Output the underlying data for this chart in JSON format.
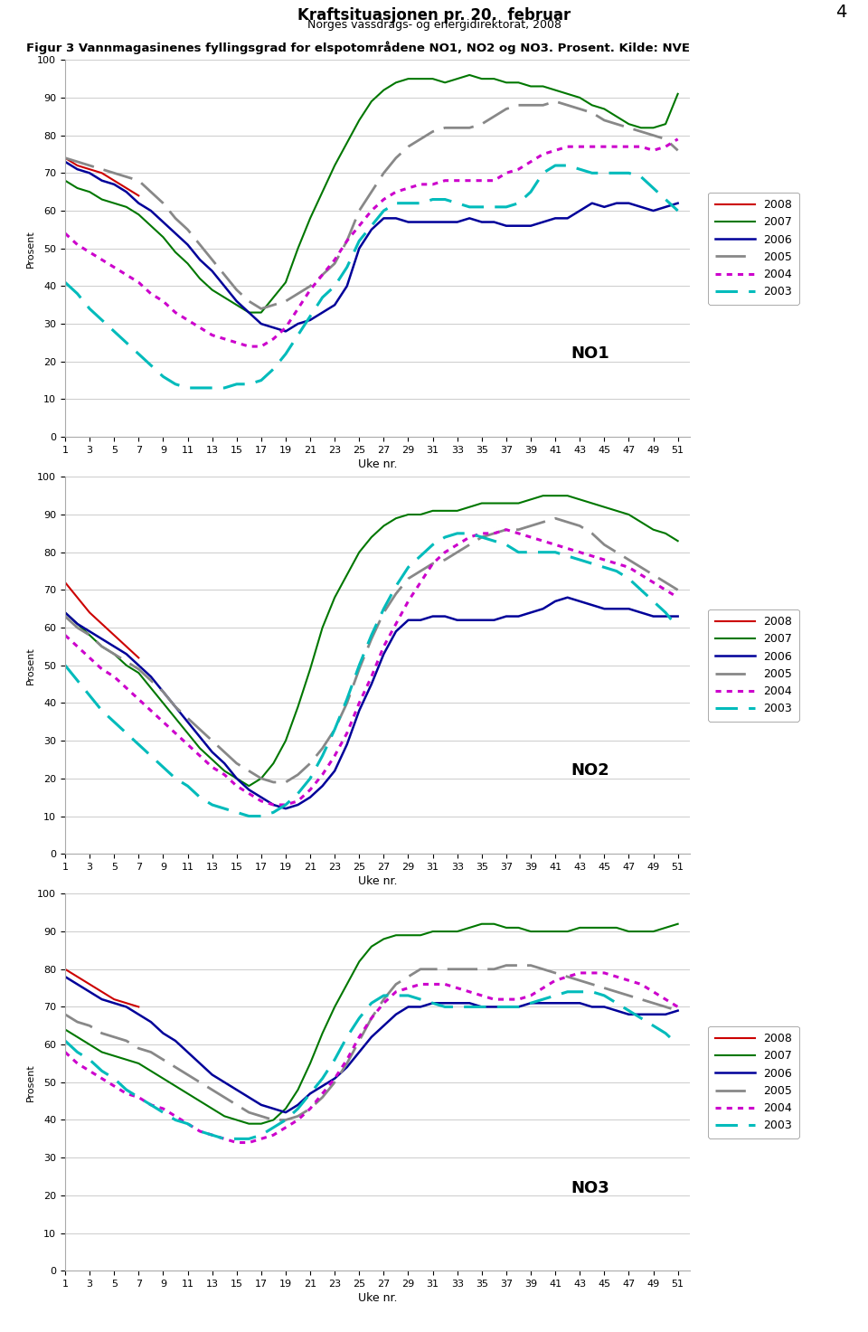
{
  "title": "Kraftsituasjonen pr. 20.  februar",
  "subtitle": "Norges vassdrags- og energidirektorat, 2008",
  "page_number": "4",
  "figure_caption": "Figur 3 Vannmagasinenes fyllingsgrad for elspotområdene NO1, NO2 og NO3. Prosent. Kilde: NVE",
  "ylabel": "Prosent",
  "xlabel": "Uke nr.",
  "xticks": [
    1,
    3,
    5,
    7,
    9,
    11,
    13,
    15,
    17,
    19,
    21,
    23,
    25,
    27,
    29,
    31,
    33,
    35,
    37,
    39,
    41,
    43,
    45,
    47,
    49,
    51
  ],
  "yticks": [
    0,
    10,
    20,
    30,
    40,
    50,
    60,
    70,
    80,
    90,
    100
  ],
  "series": {
    "2008": {
      "color": "#cc0000",
      "linestyle": "-",
      "linewidth": 1.5
    },
    "2007": {
      "color": "#007700",
      "linestyle": "-",
      "linewidth": 1.5
    },
    "2006": {
      "color": "#000099",
      "linestyle": "-",
      "linewidth": 1.8
    },
    "2005": {
      "color": "#888888",
      "linestyle": "--",
      "linewidth": 2.0
    },
    "2004": {
      "color": "#cc00cc",
      "linestyle": ":",
      "linewidth": 2.2
    },
    "2003": {
      "color": "#00bbbb",
      "linestyle": "--",
      "linewidth": 2.2
    }
  },
  "NO1": {
    "weeks": [
      1,
      2,
      3,
      4,
      5,
      6,
      7,
      8,
      9,
      10,
      11,
      12,
      13,
      14,
      15,
      16,
      17,
      18,
      19,
      20,
      21,
      22,
      23,
      24,
      25,
      26,
      27,
      28,
      29,
      30,
      31,
      32,
      33,
      34,
      35,
      36,
      37,
      38,
      39,
      40,
      41,
      42,
      43,
      44,
      45,
      46,
      47,
      48,
      49,
      50,
      51
    ],
    "2008": [
      74,
      72,
      71,
      70,
      68,
      66,
      64,
      null,
      null,
      null,
      null,
      null,
      null,
      null,
      null,
      null,
      null,
      null,
      null,
      null,
      null,
      null,
      null,
      null,
      null,
      null,
      null,
      null,
      null,
      null,
      null,
      null,
      null,
      null,
      null,
      null,
      null,
      null,
      null,
      null,
      null,
      null,
      null,
      null,
      null,
      null,
      null,
      null,
      null,
      null,
      null
    ],
    "2007": [
      68,
      66,
      65,
      63,
      62,
      61,
      59,
      56,
      53,
      49,
      46,
      42,
      39,
      37,
      35,
      33,
      33,
      37,
      41,
      50,
      58,
      65,
      72,
      78,
      84,
      89,
      92,
      94,
      95,
      95,
      95,
      94,
      95,
      96,
      95,
      95,
      94,
      94,
      93,
      93,
      92,
      91,
      90,
      88,
      87,
      85,
      83,
      82,
      82,
      83,
      91
    ],
    "2006": [
      73,
      71,
      70,
      68,
      67,
      65,
      62,
      60,
      57,
      54,
      51,
      47,
      44,
      40,
      36,
      33,
      30,
      29,
      28,
      30,
      31,
      33,
      35,
      40,
      50,
      55,
      58,
      58,
      57,
      57,
      57,
      57,
      57,
      58,
      57,
      57,
      56,
      56,
      56,
      57,
      58,
      58,
      60,
      62,
      61,
      62,
      62,
      61,
      60,
      61,
      62
    ],
    "2005": [
      74,
      73,
      72,
      71,
      70,
      69,
      68,
      65,
      62,
      58,
      55,
      51,
      47,
      43,
      39,
      36,
      34,
      35,
      36,
      38,
      40,
      43,
      46,
      52,
      60,
      65,
      70,
      74,
      77,
      79,
      81,
      82,
      82,
      82,
      83,
      85,
      87,
      88,
      88,
      88,
      89,
      88,
      87,
      86,
      84,
      83,
      82,
      81,
      80,
      79,
      76
    ],
    "2004": [
      54,
      51,
      49,
      47,
      45,
      43,
      41,
      38,
      36,
      33,
      31,
      29,
      27,
      26,
      25,
      24,
      24,
      26,
      29,
      34,
      39,
      43,
      47,
      52,
      56,
      60,
      63,
      65,
      66,
      67,
      67,
      68,
      68,
      68,
      68,
      68,
      70,
      71,
      73,
      75,
      76,
      77,
      77,
      77,
      77,
      77,
      77,
      77,
      76,
      77,
      79
    ],
    "2003": [
      41,
      38,
      34,
      31,
      28,
      25,
      22,
      19,
      16,
      14,
      13,
      13,
      13,
      13,
      14,
      14,
      15,
      18,
      22,
      27,
      32,
      37,
      40,
      45,
      52,
      56,
      60,
      62,
      62,
      62,
      63,
      63,
      62,
      61,
      61,
      61,
      61,
      62,
      65,
      70,
      72,
      72,
      71,
      70,
      70,
      70,
      70,
      69,
      66,
      63,
      60
    ]
  },
  "NO2": {
    "weeks": [
      1,
      2,
      3,
      4,
      5,
      6,
      7,
      8,
      9,
      10,
      11,
      12,
      13,
      14,
      15,
      16,
      17,
      18,
      19,
      20,
      21,
      22,
      23,
      24,
      25,
      26,
      27,
      28,
      29,
      30,
      31,
      32,
      33,
      34,
      35,
      36,
      37,
      38,
      39,
      40,
      41,
      42,
      43,
      44,
      45,
      46,
      47,
      48,
      49,
      50,
      51
    ],
    "2008": [
      72,
      68,
      64,
      61,
      58,
      55,
      52,
      null,
      null,
      null,
      null,
      null,
      null,
      null,
      null,
      null,
      null,
      null,
      null,
      null,
      null,
      null,
      null,
      null,
      null,
      null,
      null,
      null,
      null,
      null,
      null,
      null,
      null,
      null,
      null,
      null,
      null,
      null,
      null,
      null,
      null,
      null,
      null,
      null,
      null,
      null,
      null,
      null,
      null,
      null,
      null
    ],
    "2007": [
      64,
      61,
      58,
      55,
      53,
      50,
      48,
      44,
      40,
      36,
      32,
      28,
      25,
      22,
      20,
      18,
      20,
      24,
      30,
      39,
      49,
      60,
      68,
      74,
      80,
      84,
      87,
      89,
      90,
      90,
      91,
      91,
      91,
      92,
      93,
      93,
      93,
      93,
      94,
      95,
      95,
      95,
      94,
      93,
      92,
      91,
      90,
      88,
      86,
      85,
      83
    ],
    "2006": [
      64,
      61,
      59,
      57,
      55,
      53,
      50,
      47,
      43,
      39,
      35,
      31,
      27,
      24,
      20,
      17,
      15,
      13,
      12,
      13,
      15,
      18,
      22,
      29,
      38,
      45,
      53,
      59,
      62,
      62,
      63,
      63,
      62,
      62,
      62,
      62,
      63,
      63,
      64,
      65,
      67,
      68,
      67,
      66,
      65,
      65,
      65,
      64,
      63,
      63,
      63
    ],
    "2005": [
      63,
      60,
      58,
      55,
      53,
      51,
      49,
      46,
      43,
      39,
      36,
      33,
      30,
      27,
      24,
      22,
      20,
      19,
      19,
      21,
      24,
      28,
      33,
      40,
      49,
      57,
      64,
      69,
      73,
      75,
      77,
      78,
      80,
      82,
      84,
      85,
      86,
      86,
      87,
      88,
      89,
      88,
      87,
      85,
      82,
      80,
      78,
      76,
      74,
      72,
      70
    ],
    "2004": [
      58,
      55,
      52,
      49,
      47,
      44,
      41,
      38,
      35,
      32,
      29,
      26,
      23,
      21,
      18,
      16,
      14,
      13,
      13,
      14,
      17,
      21,
      26,
      32,
      40,
      47,
      55,
      61,
      67,
      72,
      77,
      80,
      82,
      84,
      85,
      85,
      86,
      85,
      84,
      83,
      82,
      81,
      80,
      79,
      78,
      77,
      76,
      74,
      72,
      70,
      68
    ],
    "2003": [
      50,
      46,
      42,
      38,
      35,
      32,
      29,
      26,
      23,
      20,
      18,
      15,
      13,
      12,
      11,
      10,
      10,
      11,
      13,
      16,
      20,
      26,
      33,
      41,
      50,
      58,
      65,
      71,
      76,
      79,
      82,
      84,
      85,
      85,
      84,
      83,
      82,
      80,
      80,
      80,
      80,
      79,
      78,
      77,
      76,
      75,
      73,
      70,
      67,
      64,
      60
    ]
  },
  "NO3": {
    "weeks": [
      1,
      2,
      3,
      4,
      5,
      6,
      7,
      8,
      9,
      10,
      11,
      12,
      13,
      14,
      15,
      16,
      17,
      18,
      19,
      20,
      21,
      22,
      23,
      24,
      25,
      26,
      27,
      28,
      29,
      30,
      31,
      32,
      33,
      34,
      35,
      36,
      37,
      38,
      39,
      40,
      41,
      42,
      43,
      44,
      45,
      46,
      47,
      48,
      49,
      50,
      51
    ],
    "2008": [
      80,
      78,
      76,
      74,
      72,
      71,
      70,
      null,
      null,
      null,
      null,
      null,
      null,
      null,
      null,
      null,
      null,
      null,
      null,
      null,
      null,
      null,
      null,
      null,
      null,
      null,
      null,
      null,
      null,
      null,
      null,
      null,
      null,
      null,
      null,
      null,
      null,
      null,
      null,
      null,
      null,
      null,
      null,
      null,
      null,
      null,
      null,
      null,
      null,
      null,
      null
    ],
    "2007": [
      64,
      62,
      60,
      58,
      57,
      56,
      55,
      53,
      51,
      49,
      47,
      45,
      43,
      41,
      40,
      39,
      39,
      40,
      43,
      48,
      55,
      63,
      70,
      76,
      82,
      86,
      88,
      89,
      89,
      89,
      90,
      90,
      90,
      91,
      92,
      92,
      91,
      91,
      90,
      90,
      90,
      90,
      91,
      91,
      91,
      91,
      90,
      90,
      90,
      91,
      92
    ],
    "2006": [
      78,
      76,
      74,
      72,
      71,
      70,
      68,
      66,
      63,
      61,
      58,
      55,
      52,
      50,
      48,
      46,
      44,
      43,
      42,
      44,
      47,
      49,
      51,
      54,
      58,
      62,
      65,
      68,
      70,
      70,
      71,
      71,
      71,
      71,
      70,
      70,
      70,
      70,
      71,
      71,
      71,
      71,
      71,
      70,
      70,
      69,
      68,
      68,
      68,
      68,
      69
    ],
    "2005": [
      68,
      66,
      65,
      63,
      62,
      61,
      59,
      58,
      56,
      54,
      52,
      50,
      48,
      46,
      44,
      42,
      41,
      40,
      40,
      41,
      43,
      46,
      50,
      55,
      61,
      67,
      72,
      76,
      78,
      80,
      80,
      80,
      80,
      80,
      80,
      80,
      81,
      81,
      81,
      80,
      79,
      78,
      77,
      76,
      75,
      74,
      73,
      72,
      71,
      70,
      69
    ],
    "2004": [
      58,
      55,
      53,
      51,
      49,
      47,
      46,
      44,
      43,
      41,
      39,
      37,
      36,
      35,
      34,
      34,
      35,
      36,
      38,
      40,
      43,
      47,
      51,
      56,
      62,
      67,
      71,
      74,
      75,
      76,
      76,
      76,
      75,
      74,
      73,
      72,
      72,
      72,
      73,
      75,
      77,
      78,
      79,
      79,
      79,
      78,
      77,
      76,
      74,
      72,
      70
    ],
    "2003": [
      61,
      58,
      56,
      53,
      51,
      48,
      46,
      44,
      42,
      40,
      39,
      37,
      36,
      35,
      35,
      35,
      36,
      38,
      40,
      43,
      47,
      51,
      56,
      62,
      67,
      71,
      73,
      73,
      73,
      72,
      71,
      70,
      70,
      70,
      70,
      70,
      70,
      70,
      71,
      72,
      73,
      74,
      74,
      74,
      73,
      71,
      69,
      67,
      65,
      63,
      60
    ]
  }
}
